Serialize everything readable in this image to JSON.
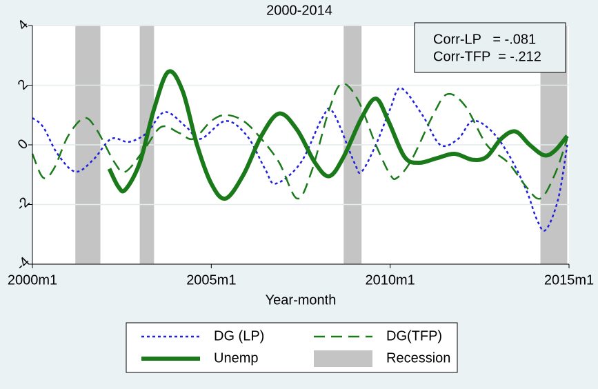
{
  "chart_data": {
    "type": "line",
    "title": "2000-2014",
    "x_label": "Year-month",
    "xlim": [
      2000,
      2015
    ],
    "ylim": [
      -4,
      4
    ],
    "xticks": [
      {
        "value": 2000,
        "label": "2000m1"
      },
      {
        "value": 2005,
        "label": "2005m1"
      },
      {
        "value": 2010,
        "label": "2010m1"
      },
      {
        "value": 2015,
        "label": "2015m1"
      }
    ],
    "yticks": [
      -4,
      -2,
      0,
      2,
      4
    ],
    "grid": true,
    "annotations": [
      "Corr-LP   = -.081",
      "Corr-TFP  = -.212"
    ],
    "recession": {
      "name": "Recession",
      "color": "#c4c4c4",
      "ranges": [
        [
          2001.2,
          2001.9
        ],
        [
          2003.0,
          2003.4
        ],
        [
          2008.7,
          2009.2
        ],
        [
          2014.2,
          2014.95
        ]
      ]
    },
    "series": [
      {
        "name": "DG (LP)",
        "color": "#1f1fdc",
        "style": "dotted",
        "x": [
          2000.0,
          2000.3,
          2000.7,
          2001.2,
          2001.7,
          2002.2,
          2002.7,
          2003.2,
          2003.7,
          2004.3,
          2004.7,
          2005.4,
          2006.0,
          2006.5,
          2006.8,
          2007.5,
          2008.1,
          2008.4,
          2009.0,
          2009.2,
          2009.6,
          2010.0,
          2010.3,
          2010.9,
          2011.4,
          2011.9,
          2012.3,
          2012.8,
          2013.3,
          2013.8,
          2014.1,
          2014.35,
          2014.7,
          2014.95
        ],
        "values": [
          0.9,
          0.6,
          -0.3,
          -0.9,
          -0.5,
          0.2,
          0.1,
          0.4,
          1.1,
          0.6,
          0.2,
          0.8,
          0.3,
          -0.8,
          -1.3,
          -0.6,
          0.9,
          1.1,
          -0.6,
          -0.9,
          0.0,
          1.2,
          1.9,
          1.0,
          0.0,
          0.2,
          0.8,
          0.5,
          -0.3,
          -1.5,
          -2.5,
          -2.85,
          -1.8,
          0.0
        ]
      },
      {
        "name": "DG(TFP)",
        "color": "#1a7a1a",
        "style": "dashed",
        "x": [
          2000.0,
          2000.3,
          2000.6,
          2001.0,
          2001.45,
          2001.8,
          2002.3,
          2002.6,
          2003.1,
          2003.6,
          2004.1,
          2004.5,
          2005.0,
          2005.4,
          2005.9,
          2006.4,
          2006.9,
          2007.4,
          2007.8,
          2008.3,
          2008.65,
          2009.1,
          2009.6,
          2010.0,
          2010.2,
          2010.6,
          2011.2,
          2011.6,
          2012.1,
          2012.7,
          2013.3,
          2013.8,
          2014.2,
          2014.6,
          2014.95
        ],
        "values": [
          -0.3,
          -1.1,
          -0.8,
          0.3,
          0.9,
          0.5,
          -0.6,
          -0.9,
          -0.2,
          0.6,
          0.4,
          0.2,
          0.8,
          1.0,
          0.8,
          0.2,
          -0.6,
          -1.8,
          -0.9,
          1.2,
          2.05,
          1.5,
          0.0,
          -1.0,
          -1.1,
          -0.5,
          1.0,
          1.7,
          1.3,
          0.0,
          -0.6,
          -1.4,
          -1.8,
          -1.0,
          0.2
        ]
      },
      {
        "name": "Unemp",
        "color": "#1a7a1a",
        "style": "solid",
        "x": [
          2002.15,
          2002.4,
          2002.6,
          2003.0,
          2003.4,
          2003.8,
          2004.2,
          2004.6,
          2005.0,
          2005.4,
          2005.9,
          2006.4,
          2006.9,
          2007.4,
          2007.9,
          2008.3,
          2008.7,
          2009.2,
          2009.6,
          2009.95,
          2010.4,
          2010.8,
          2011.3,
          2011.8,
          2012.3,
          2012.7,
          2013.1,
          2013.5,
          2013.9,
          2014.3,
          2014.6,
          2014.95
        ],
        "values": [
          -0.8,
          -1.4,
          -1.5,
          -0.6,
          1.2,
          2.45,
          1.8,
          0.0,
          -1.3,
          -1.8,
          -1.0,
          0.3,
          1.05,
          0.5,
          -0.6,
          -1.05,
          -0.4,
          0.9,
          1.55,
          0.8,
          -0.4,
          -0.6,
          -0.45,
          -0.3,
          -0.5,
          -0.4,
          0.2,
          0.45,
          0.0,
          -0.35,
          -0.2,
          0.3
        ]
      }
    ]
  }
}
